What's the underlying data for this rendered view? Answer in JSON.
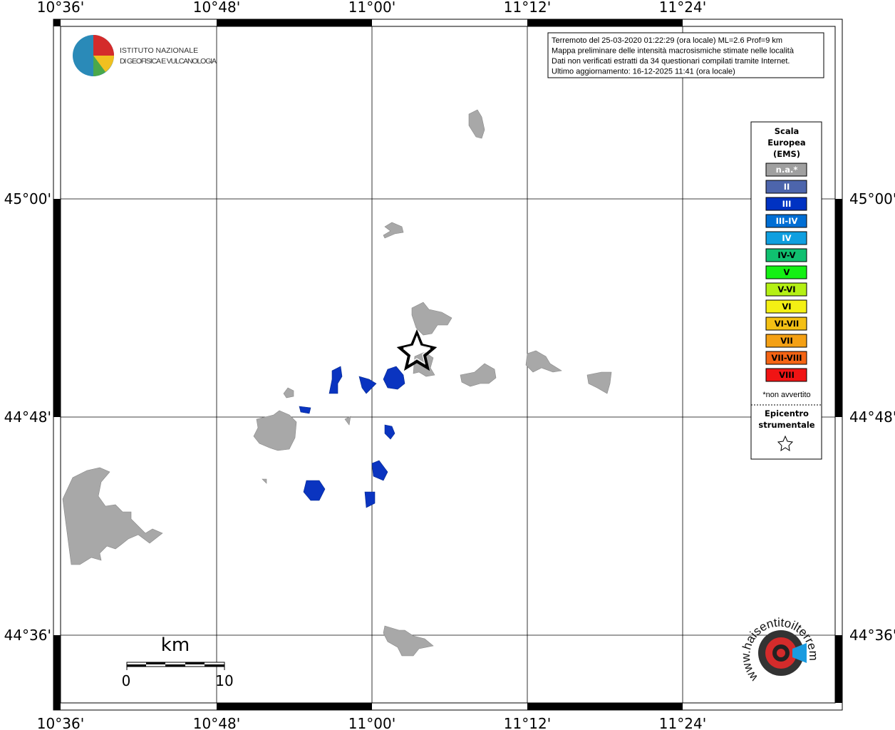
{
  "axes": {
    "longitude_labels": [
      "10°36'",
      "10°48'",
      "11°00'",
      "11°12'",
      "11°24'"
    ],
    "latitude_labels": [
      "45°00'",
      "44°48'",
      "44°36'"
    ]
  },
  "logo": {
    "line1": "ISTITUTO NAZIONALE",
    "line2": "DI GEOFISICA E VULCANOLOGIA"
  },
  "info": [
    "Terremoto del 25-03-2020 01:22:29 (ora locale) ML=2.6 Prof=9 km",
    "Mappa preliminare delle intensità macrosismiche stimate nelle località",
    "Dati non verificati estratti da 34 questionari compilati tramite Internet.",
    "Ultimo aggiornamento: 16-12-2025 11:41 (ora locale)"
  ],
  "legend": {
    "title": [
      "Scala",
      "Europea",
      "(EMS)"
    ],
    "items": [
      {
        "label": "n.a.*",
        "color": "#a0a0a0"
      },
      {
        "label": "II",
        "color": "#4d65ac"
      },
      {
        "label": "III",
        "color": "#0032c2"
      },
      {
        "label": "III-IV",
        "color": "#006ed4"
      },
      {
        "label": "IV",
        "color": "#0f9fe0"
      },
      {
        "label": "IV-V",
        "color": "#10c070"
      },
      {
        "label": "V",
        "color": "#14f014"
      },
      {
        "label": "V-VI",
        "color": "#b4f014"
      },
      {
        "label": "VI",
        "color": "#f4f014"
      },
      {
        "label": "VI-VII",
        "color": "#f4c014"
      },
      {
        "label": "VII",
        "color": "#f4a014"
      },
      {
        "label": "VII-VIII",
        "color": "#f46414"
      },
      {
        "label": "VIII",
        "color": "#f01414"
      }
    ],
    "note": "*non avvertito",
    "epicenter": [
      "Epicentro",
      "strumentale"
    ]
  },
  "scale_bar": {
    "unit": "km",
    "start": "0",
    "end": "10"
  },
  "site_logo": "www.haisentitoilterremoto.it"
}
